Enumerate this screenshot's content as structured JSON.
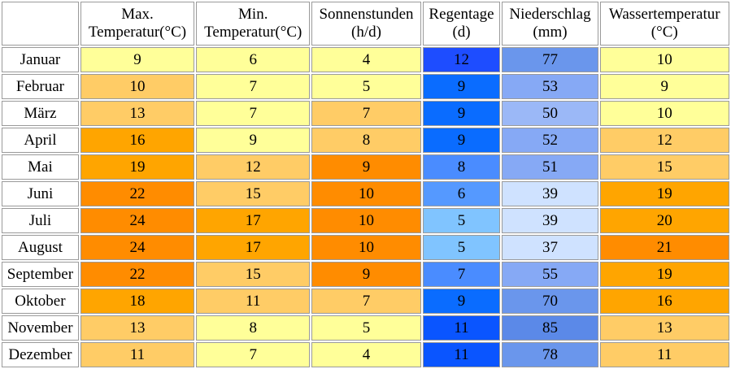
{
  "chart_data": {
    "type": "table",
    "columns": [
      {
        "key": "max_temp",
        "line1": "Max.",
        "line2": "Temperatur(°C)"
      },
      {
        "key": "min_temp",
        "line1": "Min.",
        "line2": "Temperatur(°C)"
      },
      {
        "key": "sun",
        "line1": "Sonnenstunden",
        "line2": "(h/d)"
      },
      {
        "key": "rain_days",
        "line1": "Regentage",
        "line2": "(d)"
      },
      {
        "key": "precip",
        "line1": "Niederschlag",
        "line2": "(mm)"
      },
      {
        "key": "water_temp",
        "line1": "Wassertemperatur",
        "line2": "(°C)"
      }
    ],
    "rows": [
      {
        "month": "Januar",
        "values": [
          9,
          6,
          4,
          12,
          77,
          10
        ],
        "colors": [
          "#ffff99",
          "#ffff99",
          "#ffff99",
          "#1e4dff",
          "#6a96ec",
          "#ffff99"
        ]
      },
      {
        "month": "Februar",
        "values": [
          10,
          7,
          5,
          9,
          53,
          9
        ],
        "colors": [
          "#ffcc66",
          "#ffff99",
          "#ffff99",
          "#0a6cff",
          "#86a9f5",
          "#ffff99"
        ]
      },
      {
        "month": "März",
        "values": [
          13,
          7,
          7,
          9,
          50,
          10
        ],
        "colors": [
          "#ffcc66",
          "#ffff99",
          "#ffcc66",
          "#0a6cff",
          "#9bb8f7",
          "#ffff99"
        ]
      },
      {
        "month": "April",
        "values": [
          16,
          9,
          8,
          9,
          52,
          12
        ],
        "colors": [
          "#ffa500",
          "#ffff99",
          "#ffcc66",
          "#0a6cff",
          "#86a9f5",
          "#ffcc66"
        ]
      },
      {
        "month": "Mai",
        "values": [
          19,
          12,
          9,
          8,
          51,
          15
        ],
        "colors": [
          "#ffa500",
          "#ffcc66",
          "#ff8c00",
          "#4a8cff",
          "#86a9f5",
          "#ffcc66"
        ]
      },
      {
        "month": "Juni",
        "values": [
          22,
          15,
          10,
          6,
          39,
          19
        ],
        "colors": [
          "#ff8c00",
          "#ffcc66",
          "#ff8c00",
          "#5599ff",
          "#cfe2ff",
          "#ffa500"
        ]
      },
      {
        "month": "Juli",
        "values": [
          24,
          17,
          10,
          5,
          39,
          20
        ],
        "colors": [
          "#ff8c00",
          "#ffa500",
          "#ff8c00",
          "#80c4ff",
          "#cfe2ff",
          "#ffa500"
        ]
      },
      {
        "month": "August",
        "values": [
          24,
          17,
          10,
          5,
          37,
          21
        ],
        "colors": [
          "#ff8c00",
          "#ffa500",
          "#ff8c00",
          "#80c4ff",
          "#cfe2ff",
          "#ff8c00"
        ]
      },
      {
        "month": "September",
        "values": [
          22,
          15,
          9,
          7,
          55,
          19
        ],
        "colors": [
          "#ff8c00",
          "#ffcc66",
          "#ff8c00",
          "#4a8cff",
          "#86a9f5",
          "#ffa500"
        ]
      },
      {
        "month": "Oktober",
        "values": [
          18,
          11,
          7,
          9,
          70,
          16
        ],
        "colors": [
          "#ffa500",
          "#ffcc66",
          "#ffcc66",
          "#0a6cff",
          "#6a96ec",
          "#ffa500"
        ]
      },
      {
        "month": "November",
        "values": [
          13,
          8,
          5,
          11,
          85,
          13
        ],
        "colors": [
          "#ffcc66",
          "#ffff99",
          "#ffff99",
          "#0a55ff",
          "#5b89e8",
          "#ffcc66"
        ]
      },
      {
        "month": "Dezember",
        "values": [
          11,
          7,
          4,
          11,
          78,
          11
        ],
        "colors": [
          "#ffcc66",
          "#ffff99",
          "#ffff99",
          "#0a55ff",
          "#6a96ec",
          "#ffcc66"
        ]
      }
    ]
  }
}
